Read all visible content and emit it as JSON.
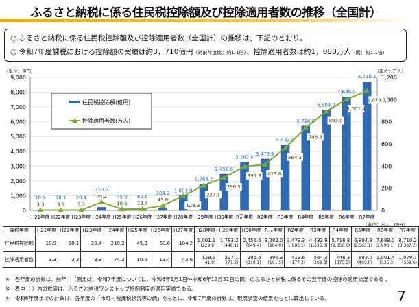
{
  "title": "ふるさと納税に係る住民税控除額及び控除適用者数の推移（全国計）",
  "summary": {
    "line1": "○ ふるさと納税に係る住民税控除額及び控除適用者数（全国計）の推移は、下記のとおり。",
    "line2_main": "○ 令和7年度課税における控除額の実績は約8，710億円",
    "line2_note1": "（対前年度比：約1.1倍）",
    "line2_mid": "、控除適用者数は約1，080万人",
    "line2_note2": "（同：約1.1倍）"
  },
  "chart_data": {
    "type": "bar+line",
    "categories": [
      "H21年度",
      "H22年度",
      "H23年度",
      "H24年度",
      "H25年度",
      "H26年度",
      "H27年度",
      "H28年度",
      "H29年度",
      "H30年度",
      "R元年度",
      "R2年度",
      "R3年度",
      "R4年度",
      "R5年度",
      "R6年度",
      "R7年度"
    ],
    "series": [
      {
        "name": "住民税控除額(億円)",
        "type": "bar",
        "axis": "left",
        "color": "#2e6bb3",
        "labels": [
          "18.9",
          "18.1",
          "20.4",
          "210.2",
          "45.3",
          "60.6",
          "184.2",
          "1,001.9",
          "1,783.2",
          "2,456.6",
          "3,282.0",
          "3,479.3",
          "4,432.9",
          "5,716.8",
          "6,804.9",
          "7,689.0",
          "8,710.2"
        ],
        "values": [
          18.9,
          18.1,
          20.4,
          210.2,
          45.3,
          60.6,
          184.2,
          1001.9,
          1783.2,
          2456.6,
          3282.0,
          3479.3,
          4432.9,
          5716.8,
          6804.9,
          7689.0,
          8710.2
        ]
      },
      {
        "name": "控除適用者数(万人)",
        "type": "line",
        "axis": "right",
        "color": "#7aab2a",
        "labels": [
          "3.3",
          "3.3",
          "3.3",
          "74.2",
          "10.6",
          "13.4",
          "43.6",
          "129.9",
          "227.1",
          "296.5",
          "396.3",
          "413.6",
          "564.3",
          "746.3",
          "893.0",
          "1,001.4",
          "1,079.7"
        ],
        "values": [
          3.3,
          3.3,
          3.3,
          74.2,
          10.6,
          13.4,
          43.6,
          129.9,
          227.1,
          296.5,
          396.3,
          413.6,
          564.3,
          746.3,
          893.0,
          1001.4,
          1079.7
        ]
      }
    ],
    "left_unit": "（単位：億円）",
    "right_unit": "（単位：万人）",
    "ylim_left": [
      0,
      9000
    ],
    "ylim_right": [
      0,
      1200
    ],
    "left_ticks": [
      "0",
      "1,000",
      "2,000",
      "3,000",
      "4,000",
      "5,000",
      "6,000",
      "7,000",
      "8,000",
      "9,000"
    ],
    "right_ticks": [
      "0",
      "200",
      "400",
      "600",
      "800",
      "1,000",
      "1,200"
    ],
    "grid": true,
    "legend": "top-left"
  },
  "table": {
    "unit": "（単位：万人、億円）",
    "header": [
      "課税年度",
      "H21年度",
      "H22年度",
      "H23年度",
      "H24年度",
      "H25年度",
      "H26年度",
      "H27年度",
      "H28年度",
      "H29年度",
      "H30年度",
      "R元年度",
      "R2年度",
      "R3年度",
      "R4年度",
      "R5年度",
      "R6年度",
      "R7年度"
    ],
    "rows": [
      {
        "label": "住民税控除額",
        "values": [
          "18.9",
          "18.1",
          "20.4",
          "210.2",
          "45.3",
          "60.6",
          "184.2",
          "1,001.9",
          "1,783.2",
          "2,456.6",
          "3,282.0",
          "3,479.3",
          "4,432.9",
          "5,716.8",
          "6,804.9",
          "7,689.0",
          "8,710.2"
        ],
        "sub": [
          "",
          "",
          "",
          "",
          "",
          "",
          "",
          "(229.6)",
          "(448.1)",
          "(649.4)",
          "(964.0)",
          "(1,086.1)",
          "(1,535.0)",
          "(2,056.6)",
          "(2,563.1)",
          "(2,993.1)",
          "(3,387.2)"
        ]
      },
      {
        "label": "控除適用者数",
        "values": [
          "3.3",
          "3.3",
          "3.3",
          "74.2",
          "10.6",
          "13.4",
          "43.6",
          "129.9",
          "227.1",
          "296.5",
          "396.3",
          "413.6",
          "564.3",
          "746.3",
          "893.0",
          "1,001.4",
          "1,079.7"
        ],
        "sub": [
          "",
          "",
          "",
          "",
          "",
          "",
          "",
          "(41.9)",
          "(77.2)",
          "(110.1)",
          "(161.5)",
          "(177.3)",
          "(269.8)",
          "(375.5)",
          "(465.0)",
          "(536.3)",
          "(569.6)"
        ]
      }
    ]
  },
  "notes": [
    "※　各年度の計数は、前年中（例えば、令和7年度については、令和6年1月1日～令和6年12月31日の間）のふるさと納税に係るその翌年度の控除の適用状況である 。",
    "※　表中（ ）内の数値は、ふるさと納税ワンストップ特例制度の適用実績である。",
    "※　令和6年度までの計数は、各年度の「市町村税課税状況等の調」をもとに、令和7年度の計数は、現況調査の結果をもとに算出している。"
  ],
  "page_number": "7"
}
